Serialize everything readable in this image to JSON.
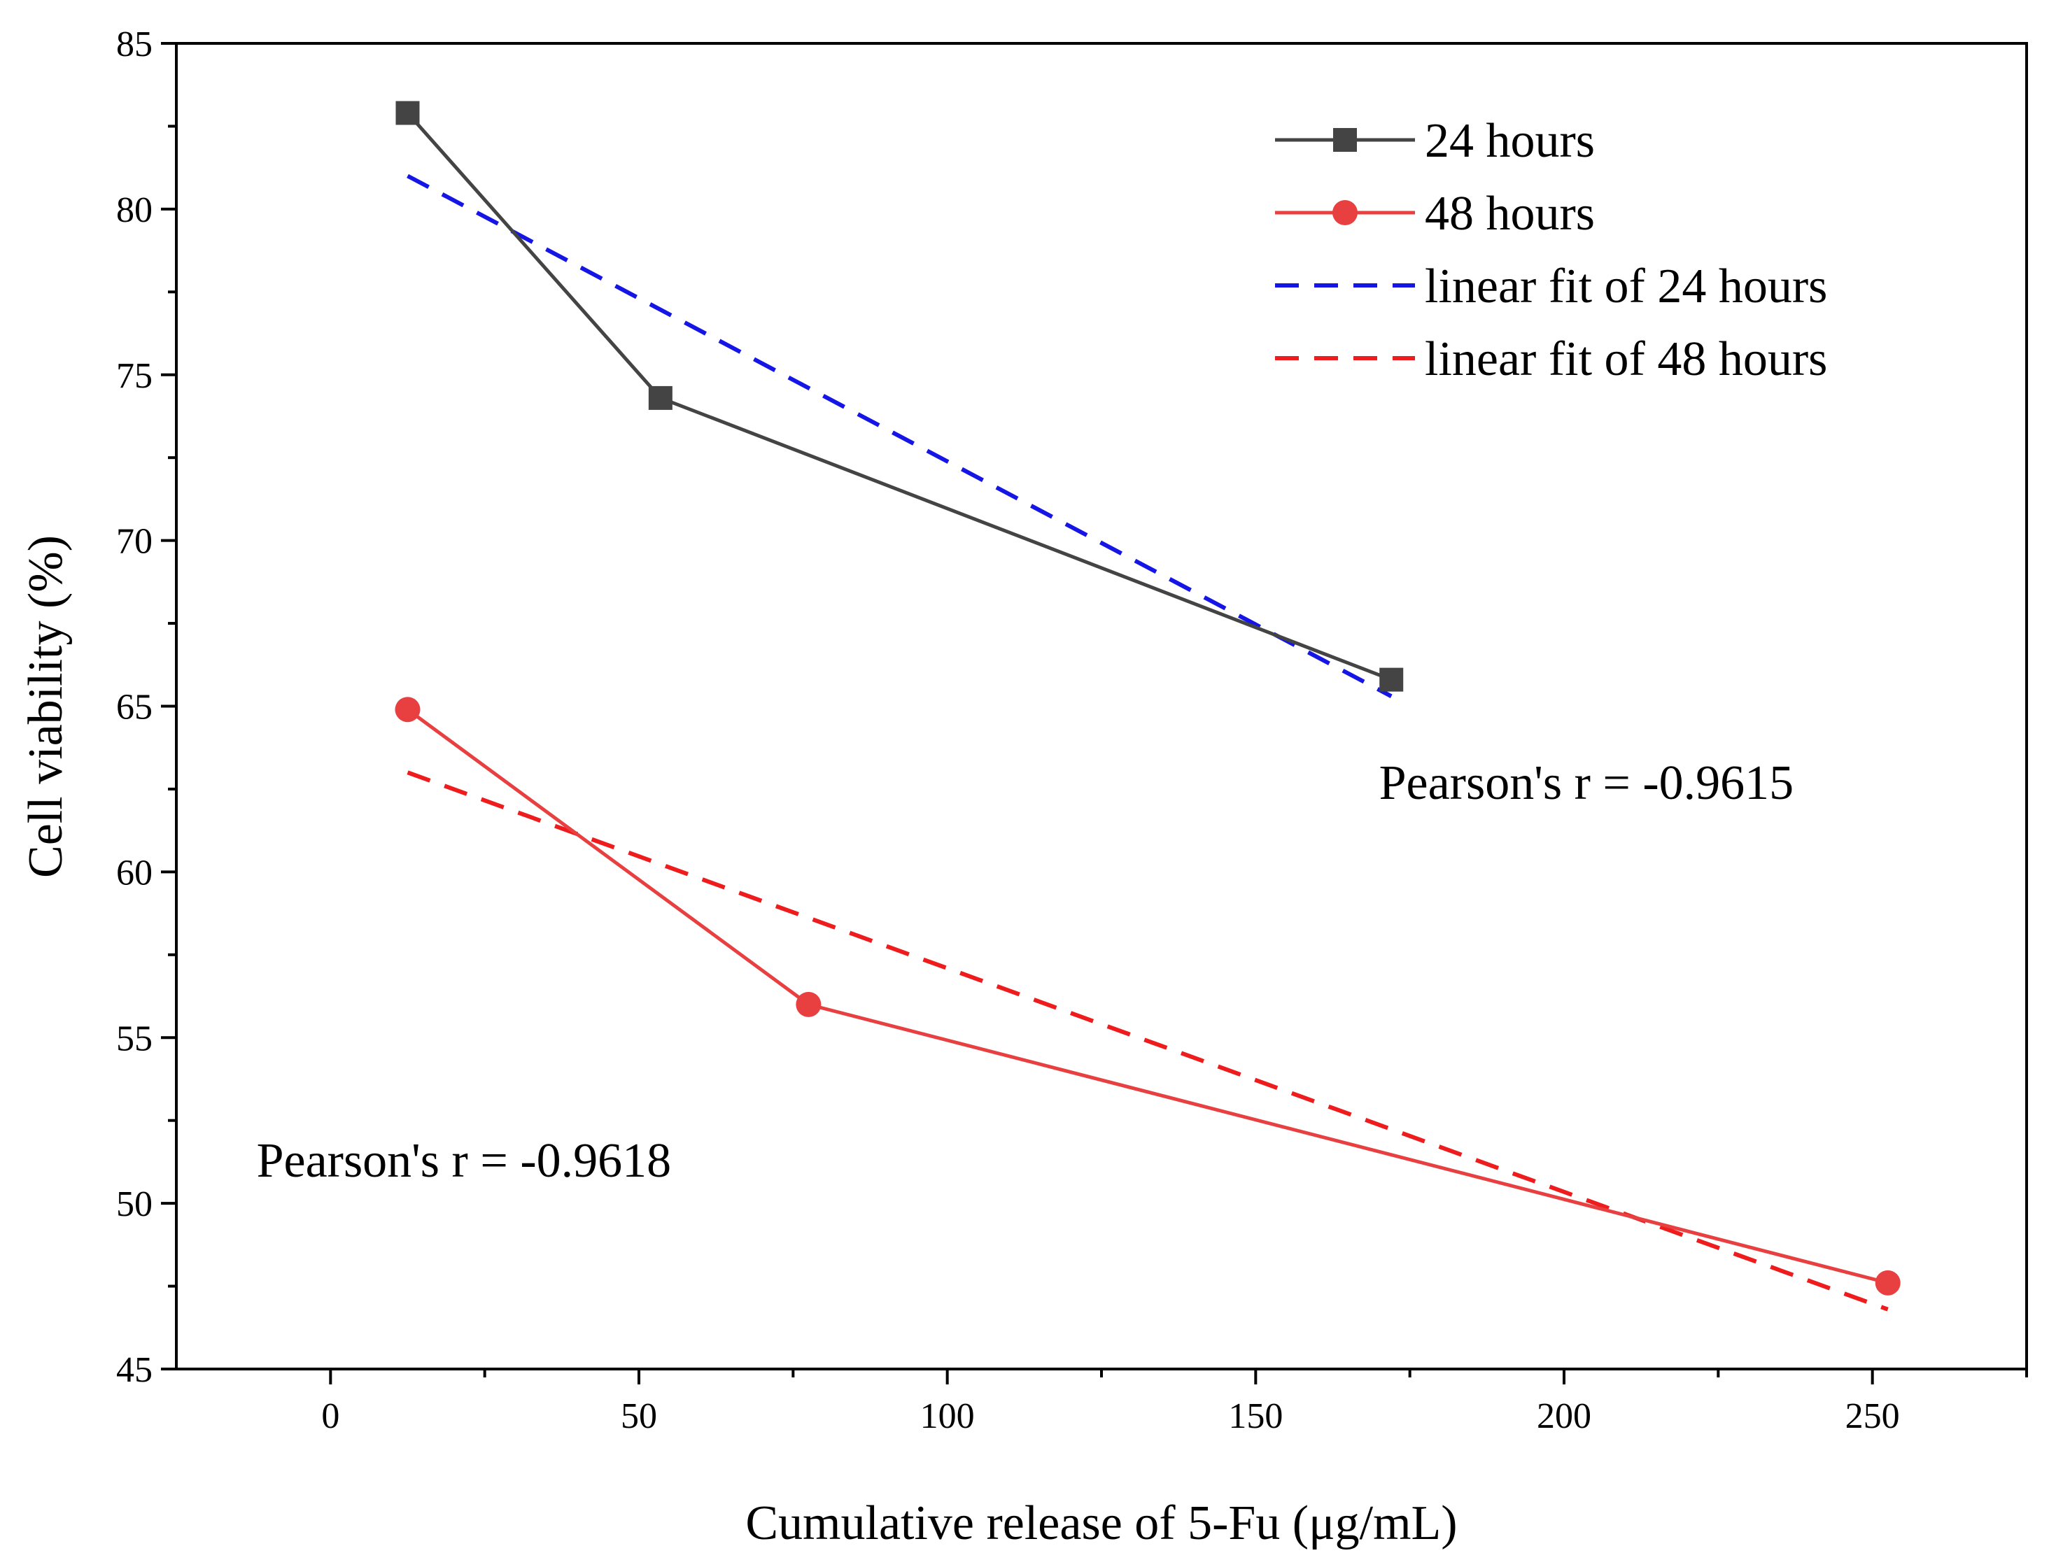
{
  "chart_data": {
    "type": "line",
    "xlabel": "Cumulative release of 5-Fu (μg/mL)",
    "ylabel": "Cell viability (%)",
    "xlim": [
      -25,
      275
    ],
    "ylim": [
      45,
      85
    ],
    "xticks": [
      0,
      50,
      100,
      150,
      200,
      250
    ],
    "yticks": [
      45,
      50,
      55,
      60,
      65,
      70,
      75,
      80,
      85
    ],
    "grid": false,
    "legend_position": "top-right",
    "series": [
      {
        "name": "24 hours",
        "kind": "line-marker",
        "marker": "square",
        "color": "#444444",
        "x": [
          12.5,
          53.5,
          172
        ],
        "y": [
          82.9,
          74.3,
          65.8
        ]
      },
      {
        "name": "48 hours",
        "kind": "line-marker",
        "marker": "circle",
        "color": "#e84040",
        "x": [
          12.5,
          77.5,
          252.5
        ],
        "y": [
          64.9,
          56.0,
          47.6
        ]
      },
      {
        "name": "linear fit of 24 hours",
        "kind": "dashed",
        "color": "#1515e6",
        "x": [
          12.5,
          172
        ],
        "y": [
          81.0,
          65.3
        ]
      },
      {
        "name": "linear fit of 48 hours",
        "kind": "dashed",
        "color": "#ee1c1c",
        "x": [
          12.5,
          252.5
        ],
        "y": [
          63.0,
          46.8
        ]
      }
    ],
    "annotations": [
      {
        "text": "Pearson's r = -0.9615",
        "x": 170,
        "y": 62.2
      },
      {
        "text": "Pearson's r = -0.9618",
        "x": -12,
        "y": 50.8
      }
    ]
  }
}
